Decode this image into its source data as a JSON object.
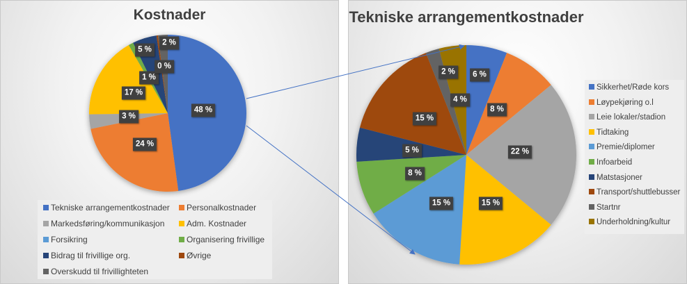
{
  "chart_data": [
    {
      "type": "pie",
      "title": "Kostnader",
      "categories": [
        "Tekniske arrangementkostnader",
        "Personalkostnader",
        "Markedsføring/kommunikasjon",
        "Adm. Kostnader",
        "Forsikring",
        "Organisering frivillige",
        "Bidrag til frivillige org.",
        "Øvrige",
        "Overskudd til frivillighteten"
      ],
      "values": [
        48,
        24,
        3,
        17,
        0,
        1,
        5,
        0,
        2
      ],
      "labels": [
        "48 %",
        "24 %",
        "3 %",
        "17 %",
        "",
        "1 %",
        "5 %",
        "0 %",
        "2 %"
      ],
      "colors": [
        "#4472c4",
        "#ed7d31",
        "#a5a5a5",
        "#ffc000",
        "#5b9bd5",
        "#70ad47",
        "#264478",
        "#9e480e",
        "#636363"
      ],
      "legend_position": "bottom"
    },
    {
      "type": "pie",
      "title": "Tekniske arrangementkostnader",
      "categories": [
        "Sikkerhet/Røde kors",
        "Løypekjøring o.l",
        "Leie lokaler/stadion",
        "Tidtaking",
        "Premie/diplomer",
        "Infoarbeid",
        "Matstasjoner",
        "Transport/shuttlebusser",
        "Startnr",
        "Underholdning/kultur"
      ],
      "values": [
        6,
        8,
        22,
        15,
        15,
        8,
        5,
        15,
        2,
        4
      ],
      "labels": [
        "6 %",
        "8 %",
        "22 %",
        "15 %",
        "15 %",
        "8 %",
        "5 %",
        "15 %",
        "2 %",
        "4 %"
      ],
      "colors": [
        "#4472c4",
        "#ed7d31",
        "#a5a5a5",
        "#ffc000",
        "#5b9bd5",
        "#70ad47",
        "#264478",
        "#9e480e",
        "#636363",
        "#997300"
      ],
      "legend_position": "right"
    }
  ],
  "charts": {
    "left": {
      "title": "Kostnader",
      "legend": [
        {
          "label": "Tekniske arrangementkostnader",
          "color": "#4472c4"
        },
        {
          "label": "Personalkostnader",
          "color": "#ed7d31"
        },
        {
          "label": "Markedsføring/kommunikasjon",
          "color": "#a5a5a5"
        },
        {
          "label": "Adm. Kostnader",
          "color": "#ffc000"
        },
        {
          "label": "Forsikring",
          "color": "#5b9bd5"
        },
        {
          "label": "Organisering frivillige",
          "color": "#70ad47"
        },
        {
          "label": "Bidrag til frivillige org.",
          "color": "#264478"
        },
        {
          "label": "Øvrige",
          "color": "#9e480e"
        },
        {
          "label": "Overskudd til frivillighteten",
          "color": "#636363"
        }
      ],
      "data_labels": [
        "48 %",
        "24 %",
        "3 %",
        "17 %",
        "1 %",
        "5 %",
        "0 %",
        "2 %"
      ]
    },
    "right": {
      "title": "Tekniske arrangementkostnader",
      "legend": [
        {
          "label": "Sikkerhet/Røde kors",
          "color": "#4472c4"
        },
        {
          "label": "Løypekjøring o.l",
          "color": "#ed7d31"
        },
        {
          "label": "Leie lokaler/stadion",
          "color": "#a5a5a5"
        },
        {
          "label": "Tidtaking",
          "color": "#ffc000"
        },
        {
          "label": "Premie/diplomer",
          "color": "#5b9bd5"
        },
        {
          "label": "Infoarbeid",
          "color": "#70ad47"
        },
        {
          "label": "Matstasjoner",
          "color": "#264478"
        },
        {
          "label": "Transport/shuttlebusser",
          "color": "#9e480e"
        },
        {
          "label": "Startnr",
          "color": "#636363"
        },
        {
          "label": "Underholdning/kultur",
          "color": "#997300"
        }
      ],
      "data_labels": [
        "6 %",
        "8 %",
        "22 %",
        "15 %",
        "15 %",
        "8 %",
        "5 %",
        "15 %",
        "2 %",
        "4 %"
      ]
    }
  }
}
